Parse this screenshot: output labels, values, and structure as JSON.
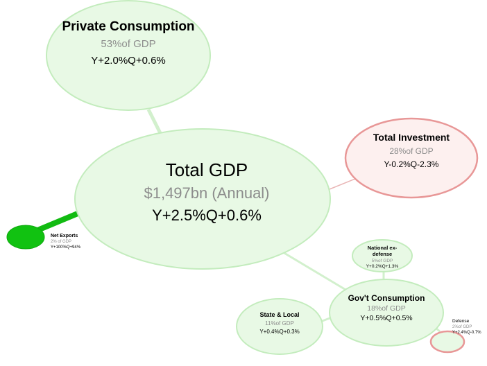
{
  "nodes": {
    "private_consumption": {
      "title": "Private Consumption",
      "share": "53%of GDP",
      "growth": "Y+2.0%Q+0.6%"
    },
    "total_gdp": {
      "title": "Total GDP",
      "share": "$1,497bn (Annual)",
      "growth": "Y+2.5%Q+0.6%"
    },
    "total_investment": {
      "title": "Total Investment",
      "share": "28%of GDP",
      "growth": "Y-0.2%Q-2.3%"
    },
    "net_exports": {
      "title": "Net Exports",
      "share": "2% of GDP",
      "growth": "Y+100%Q+94%"
    },
    "national_ex_defense": {
      "title_line1": "National ex-",
      "title_line2": "defense",
      "share": "5%of GDP",
      "growth": "Y+0.2%Q+1.3%"
    },
    "govt_consumption": {
      "title": "Gov't Consumption",
      "share": "18%of GDP",
      "growth": "Y+0.5%Q+0.5%"
    },
    "state_local": {
      "title": "State & Local",
      "share": "11%of GDP",
      "growth": "Y+0.4%Q+0.3%"
    },
    "defense": {
      "title": "Defense",
      "share": "2%of GDP",
      "growth": "Y+2.4%Q-0.7%"
    }
  },
  "colors": {
    "green_fill": "#e8f9e5",
    "green_stroke": "#c3ecbd",
    "red_fill": "#fdf0ef",
    "red_stroke": "#e89797",
    "net_exports_fill": "#11c211",
    "net_exports_link": "#12bb12",
    "link_green": "#d2f0cd",
    "link_red": "#e9b5b5"
  }
}
